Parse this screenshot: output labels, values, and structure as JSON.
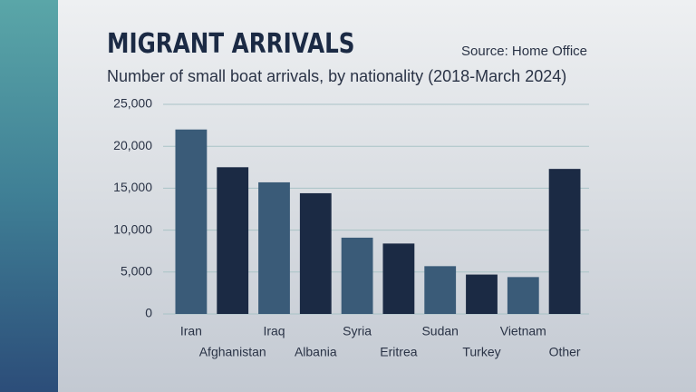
{
  "chart_data": {
    "type": "bar",
    "title": "MIGRANT ARRIVALS",
    "source": "Source: Home Office",
    "subtitle": "Number of small boat arrivals, by nationality (2018-March 2024)",
    "categories": [
      "Iran",
      "Afghanistan",
      "Iraq",
      "Albania",
      "Syria",
      "Eritrea",
      "Sudan",
      "Turkey",
      "Vietnam",
      "Other"
    ],
    "values": [
      22000,
      17500,
      15700,
      14400,
      9100,
      8400,
      5700,
      4700,
      4400,
      17300
    ],
    "colors": [
      "#3a5b78",
      "#1b2a44",
      "#3a5b78",
      "#1b2a44",
      "#3a5b78",
      "#1b2a44",
      "#3a5b78",
      "#1b2a44",
      "#3a5b78",
      "#1b2a44"
    ],
    "ylim": [
      0,
      25000
    ],
    "yticks": [
      0,
      {
        "value": 5000,
        "label": "5,000"
      },
      {
        "value": 10000,
        "label": "10,000"
      },
      {
        "value": 15000,
        "label": "15,000"
      },
      {
        "value": 20000,
        "label": "20,000"
      },
      {
        "value": 25000,
        "label": "25,000"
      }
    ],
    "grid": true
  }
}
